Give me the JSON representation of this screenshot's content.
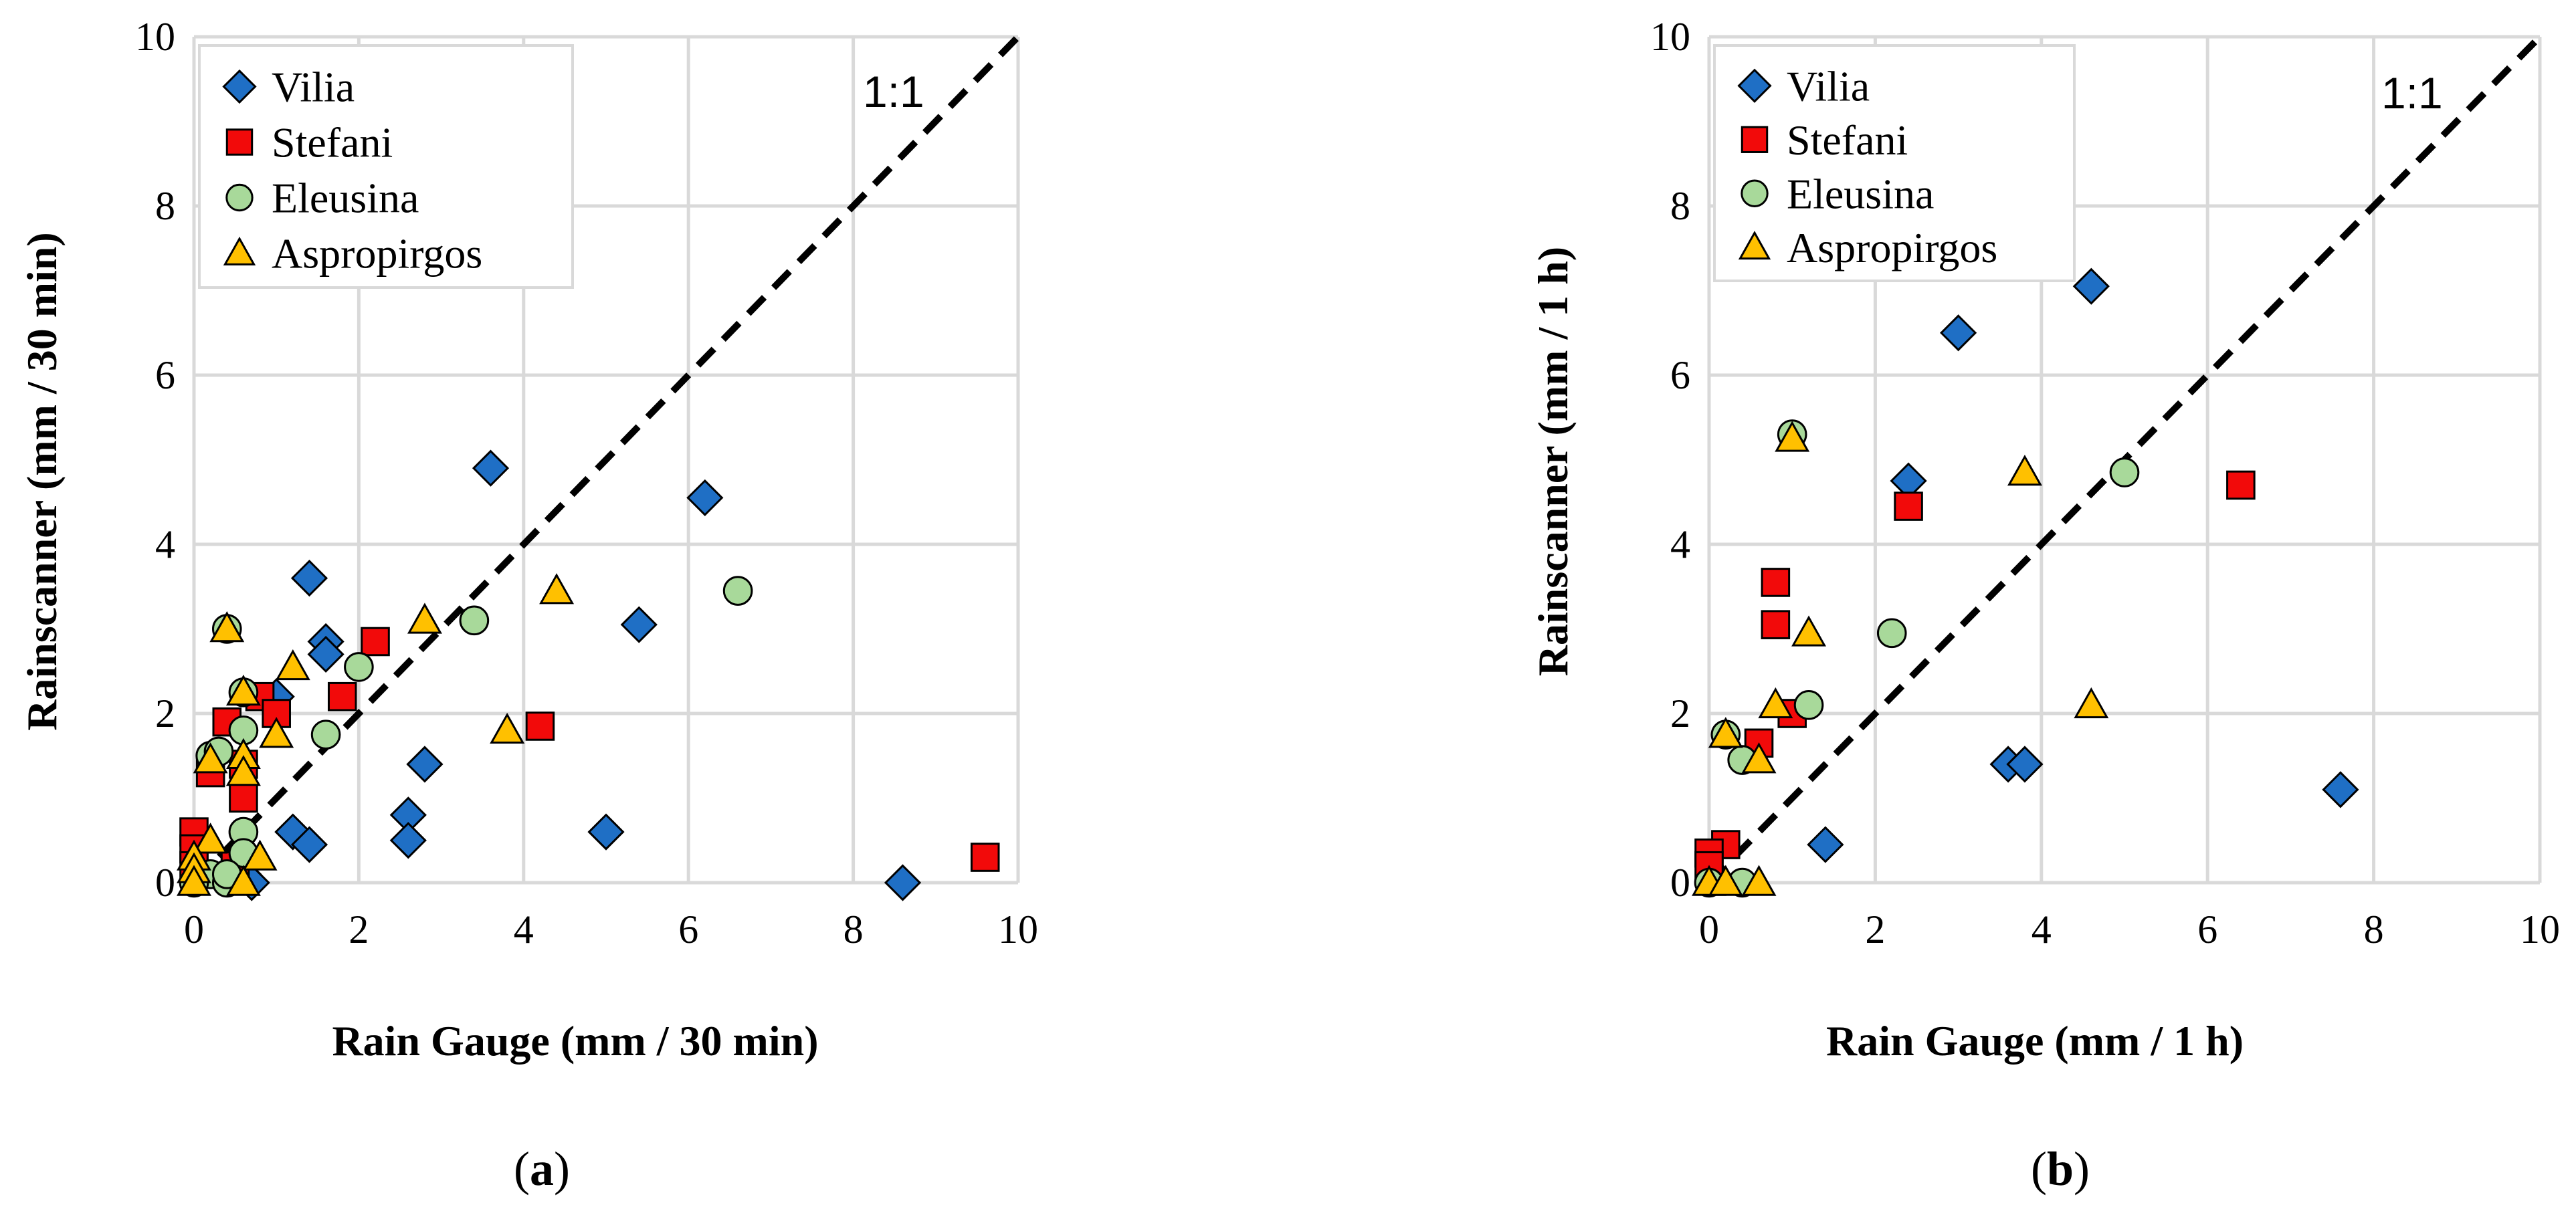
{
  "series_styles": [
    {
      "name": "Vilia",
      "marker": "diamond",
      "color": "#1f6fc5"
    },
    {
      "name": "Stefani",
      "marker": "square",
      "color": "#f20a0a"
    },
    {
      "name": "Eleusina",
      "marker": "circle",
      "color": "#a8d99a"
    },
    {
      "name": "Aspropirgos",
      "marker": "triangle",
      "color": "#ffc000"
    }
  ],
  "chart_data": [
    {
      "type": "scatter",
      "panel_label": "a",
      "xlabel": "Rain Gauge  (mm / 30 min)",
      "ylabel": "Rainscanner  (mm / 30 min)",
      "xlim": [
        0,
        10
      ],
      "ylim": [
        0,
        10
      ],
      "xticks": [
        "0",
        "2",
        "4",
        "6",
        "8",
        "10"
      ],
      "yticks": [
        "0",
        "2",
        "4",
        "6",
        "8",
        "10"
      ],
      "reference_line_label": "1:1",
      "grid": true,
      "legend": "top-left",
      "series": [
        {
          "name": "Vilia",
          "x": [
            3.6,
            1.4,
            6.2,
            1.6,
            1.6,
            5.4,
            1.0,
            2.8,
            2.6,
            2.6,
            1.2,
            1.4,
            5.0,
            0.6,
            8.6,
            0.7
          ],
          "y": [
            4.9,
            3.6,
            4.55,
            2.85,
            2.7,
            3.05,
            2.2,
            1.4,
            0.8,
            0.5,
            0.6,
            0.45,
            0.6,
            0.1,
            0.0,
            0.0
          ]
        },
        {
          "name": "Stefani",
          "x": [
            2.2,
            0.8,
            1.0,
            1.8,
            4.2,
            0.4,
            0.6,
            0.2,
            0.6,
            0.0,
            0.0,
            0.0,
            9.6,
            0.5
          ],
          "y": [
            2.85,
            2.2,
            2.0,
            2.2,
            1.85,
            1.9,
            1.4,
            1.3,
            1.0,
            0.6,
            0.4,
            0.2,
            0.3,
            0.2
          ]
        },
        {
          "name": "Eleusina",
          "x": [
            0.4,
            3.4,
            6.6,
            2.0,
            0.6,
            1.6,
            0.6,
            0.2,
            0.3,
            0.6,
            0.6,
            0.2,
            0.4,
            0.4,
            0.0
          ],
          "y": [
            3.0,
            3.1,
            3.45,
            2.55,
            2.25,
            1.75,
            1.8,
            1.5,
            1.55,
            0.6,
            0.35,
            0.1,
            0.0,
            0.1,
            0.0
          ]
        },
        {
          "name": "Aspropirgos",
          "x": [
            0.4,
            2.8,
            4.4,
            1.2,
            0.6,
            1.0,
            3.8,
            0.6,
            0.2,
            0.6,
            0.2,
            0.8,
            0.0,
            0.0,
            0.0,
            0.6
          ],
          "y": [
            3.0,
            3.1,
            3.45,
            2.55,
            2.25,
            1.75,
            1.8,
            1.5,
            1.45,
            1.3,
            0.5,
            0.3,
            0.3,
            0.15,
            0.0,
            0.0
          ]
        }
      ]
    },
    {
      "type": "scatter",
      "panel_label": "b",
      "xlabel": "Rain Gauge  (mm / 1 h)",
      "ylabel": "Rainscanner  (mm / 1 h)",
      "xlim": [
        0,
        10
      ],
      "ylim": [
        0,
        10
      ],
      "xticks": [
        "0",
        "2",
        "4",
        "6",
        "8",
        "10"
      ],
      "yticks": [
        "0",
        "2",
        "4",
        "6",
        "8",
        "10"
      ],
      "reference_line_label": "1:1",
      "grid": true,
      "legend": "top-left",
      "series": [
        {
          "name": "Vilia",
          "x": [
            4.6,
            3.0,
            2.4,
            3.6,
            3.8,
            1.4,
            7.6
          ],
          "y": [
            7.05,
            6.5,
            4.75,
            1.4,
            1.4,
            0.45,
            1.1
          ]
        },
        {
          "name": "Stefani",
          "x": [
            6.4,
            2.4,
            0.8,
            0.8,
            1.0,
            0.6,
            0.2,
            0.0,
            0.0
          ],
          "y": [
            4.7,
            4.45,
            3.55,
            3.05,
            2.0,
            1.65,
            0.45,
            0.35,
            0.2
          ]
        },
        {
          "name": "Eleusina",
          "x": [
            1.0,
            5.0,
            2.2,
            1.2,
            0.2,
            0.4,
            0.0,
            0.4
          ],
          "y": [
            5.3,
            4.85,
            2.95,
            2.1,
            1.75,
            1.45,
            0.0,
            0.0
          ]
        },
        {
          "name": "Aspropirgos",
          "x": [
            1.0,
            3.8,
            1.2,
            4.6,
            0.8,
            0.2,
            0.6,
            0.0,
            0.2,
            0.6
          ],
          "y": [
            5.25,
            4.85,
            2.95,
            2.1,
            2.1,
            1.75,
            1.45,
            0.0,
            0.0,
            0.0
          ]
        }
      ]
    }
  ]
}
